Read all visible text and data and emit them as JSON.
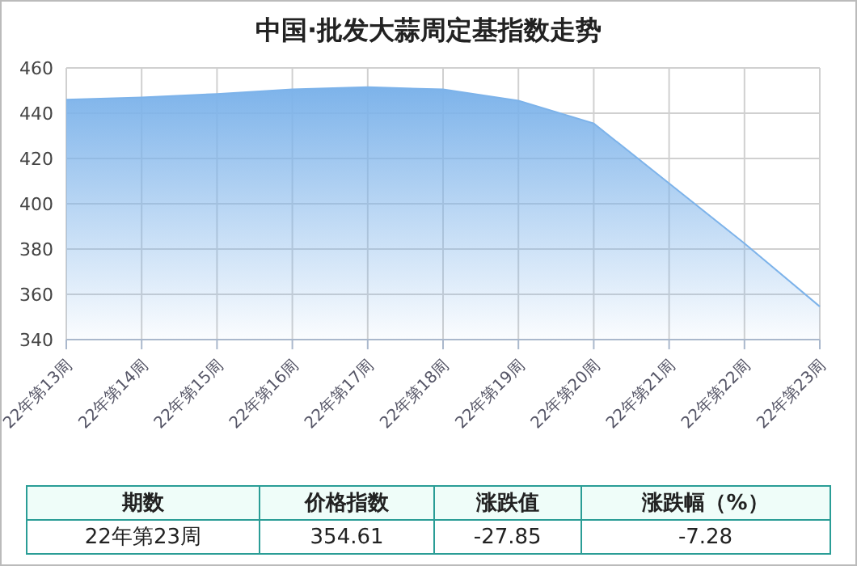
{
  "chart_data": {
    "type": "area",
    "title": "中国·批发大蒜周定基指数走势",
    "categories": [
      "22年第13周",
      "22年第14周",
      "22年第15周",
      "22年第16周",
      "22年第17周",
      "22年第18周",
      "22年第19周",
      "22年第20周",
      "22年第21周",
      "22年第22周",
      "22年第23周"
    ],
    "series": [
      {
        "color": "#7db3ea",
        "values": [
          446,
          447,
          448.5,
          450.5,
          451.5,
          450.5,
          445.5,
          435.5,
          409,
          382.5,
          354.6
        ]
      }
    ],
    "ylim": [
      340,
      460
    ],
    "yticks": [
      340,
      360,
      380,
      400,
      420,
      440,
      460
    ],
    "grid": true,
    "annotations": [
      "期数",
      "价格指数",
      "涨跌值",
      "涨跌幅（%）",
      "22年第23周",
      "354.61",
      "-27.85",
      "-7.28"
    ]
  }
}
